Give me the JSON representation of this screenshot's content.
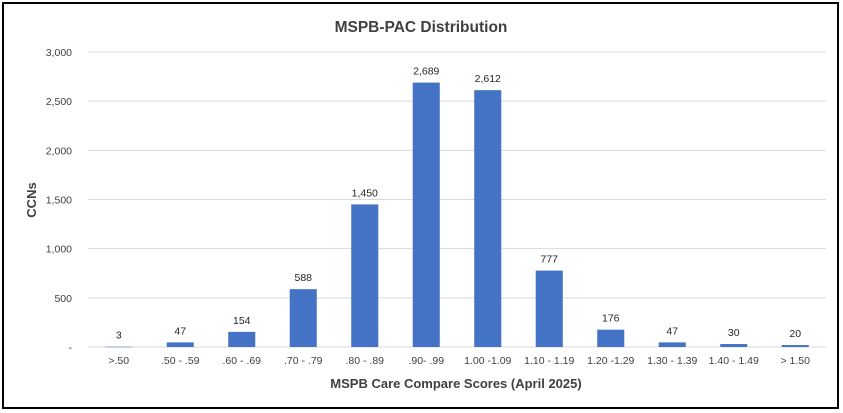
{
  "chart_data": {
    "type": "bar",
    "title": "MSPB-PAC Distribution",
    "xlabel": "MSPB Care Compare Scores (April 2025)",
    "ylabel": "CCNs",
    "categories": [
      ">.50",
      ".50 - .59",
      ".60 - .69",
      ".70 - .79",
      ".80 - .89",
      ".90- .99",
      "1.00 -1.09",
      "1.10 - 1.19",
      "1.20 -1.29",
      "1.30 - 1.39",
      "1.40 - 1.49",
      "> 1.50"
    ],
    "values": [
      3,
      47,
      154,
      588,
      1450,
      2689,
      2612,
      777,
      176,
      47,
      30,
      20
    ],
    "data_labels": [
      "3",
      "47",
      "154",
      "588",
      "1,450",
      "2,689",
      "2,612",
      "777",
      "176",
      "47",
      "30",
      "20"
    ],
    "ylim": [
      0,
      3000
    ],
    "yticks": [
      0,
      500,
      1000,
      1500,
      2000,
      2500,
      3000
    ],
    "ytick_labels": [
      "-",
      "500",
      "1,000",
      "1,500",
      "2,000",
      "2,500",
      "3,000"
    ],
    "grid": true,
    "legend": "none",
    "bar_color": "#4472C4",
    "grid_color": "#D9D9D9"
  }
}
